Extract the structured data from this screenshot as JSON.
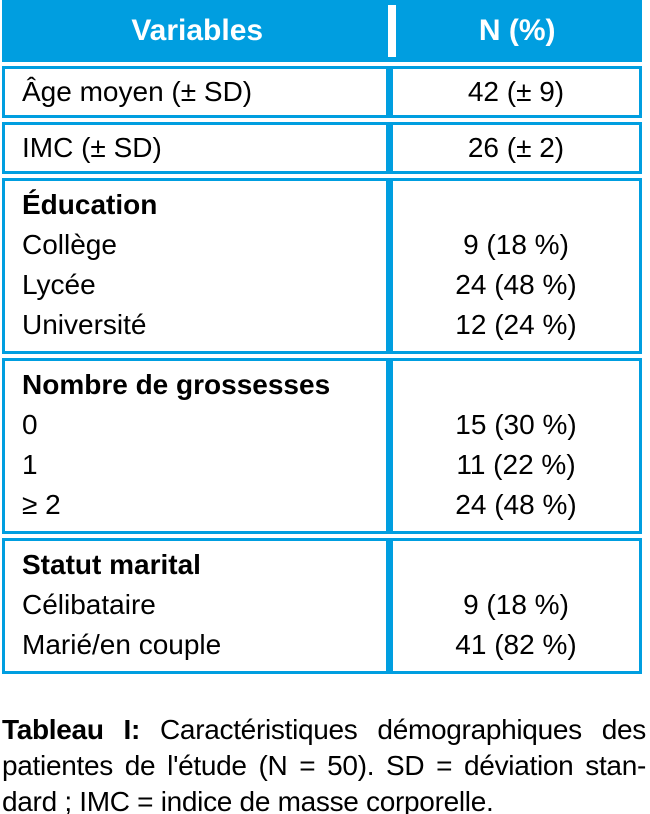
{
  "colors": {
    "accent": "#009EE0",
    "header_text": "#ffffff",
    "body_text": "#000000",
    "row_background": "#ffffff"
  },
  "table": {
    "header": {
      "col1": "Variables",
      "col2": "N (%)"
    },
    "rows": [
      {
        "type": "simple",
        "label": "Âge moyen (± SD)",
        "value": "42 (± 9)"
      },
      {
        "type": "simple",
        "label": "IMC (± SD)",
        "value": "26 (± 2)"
      },
      {
        "type": "section",
        "title": "Éducation",
        "items": [
          {
            "label": "Collège",
            "value": "9 (18 %)"
          },
          {
            "label": "Lycée",
            "value": "24 (48 %)"
          },
          {
            "label": "Université",
            "value": "12 (24 %)"
          }
        ]
      },
      {
        "type": "section",
        "title": "Nombre de grossesses",
        "items": [
          {
            "label": "0",
            "value": "15 (30 %)"
          },
          {
            "label": "1",
            "value": "11 (22 %)"
          },
          {
            "label": "≥ 2",
            "value": "24 (48 %)"
          }
        ]
      },
      {
        "type": "section",
        "title": "Statut marital",
        "items": [
          {
            "label": "Célibataire",
            "value": "9 (18 %)"
          },
          {
            "label": "Marié/en couple",
            "value": "41 (82 %)"
          }
        ]
      }
    ]
  },
  "caption": {
    "label": "Tableau I:",
    "lines": [
      "Caractéristiques démographiques des",
      "patientes de l'étude (N = 50). SD = déviation stan-",
      "dard ; IMC = indice de masse corporelle."
    ]
  }
}
